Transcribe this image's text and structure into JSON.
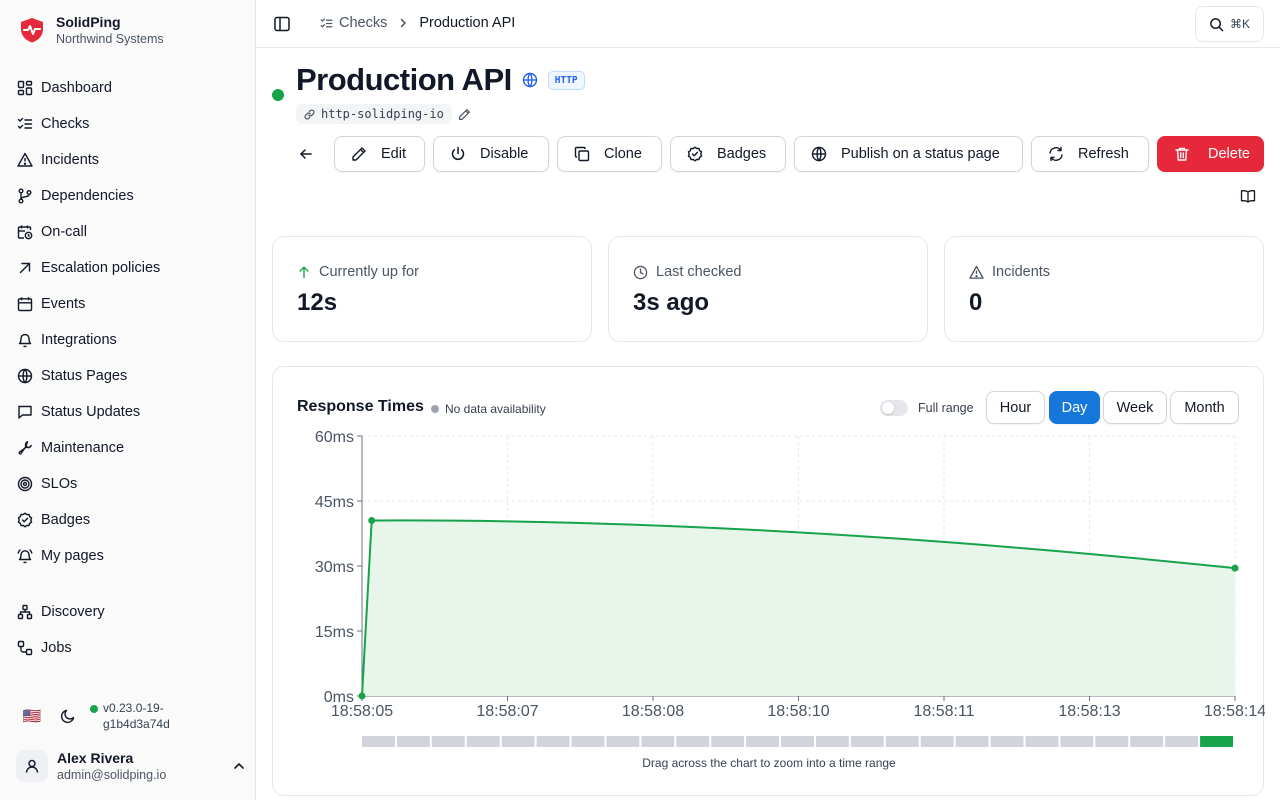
{
  "brand": {
    "name": "SolidPing",
    "org": "Northwind Systems"
  },
  "sidebar": {
    "items": [
      {
        "label": "Dashboard",
        "icon": "dashboard-icon"
      },
      {
        "label": "Checks",
        "icon": "checks-icon"
      },
      {
        "label": "Incidents",
        "icon": "warning-icon"
      },
      {
        "label": "Dependencies",
        "icon": "git-branch-icon"
      },
      {
        "label": "On-call",
        "icon": "calendar-clock-icon"
      },
      {
        "label": "Escalation policies",
        "icon": "arrow-up-right-icon"
      },
      {
        "label": "Events",
        "icon": "calendar-icon"
      },
      {
        "label": "Integrations",
        "icon": "bell-icon"
      },
      {
        "label": "Status Pages",
        "icon": "globe-icon"
      },
      {
        "label": "Status Updates",
        "icon": "message-icon"
      },
      {
        "label": "Maintenance",
        "icon": "wrench-icon"
      },
      {
        "label": "SLOs",
        "icon": "target-icon"
      },
      {
        "label": "Badges",
        "icon": "badge-check-icon"
      },
      {
        "label": "My pages",
        "icon": "bell-ring-icon"
      }
    ],
    "secondary_items": [
      {
        "label": "Discovery",
        "icon": "network-icon"
      },
      {
        "label": "Jobs",
        "icon": "workflow-icon"
      }
    ],
    "locale_flag": "🇺🇸",
    "version": "v0.23.0-19-g1b4d3a74d",
    "version_lines": [
      "v0.23.0-19-",
      "g1b4d3a74d"
    ],
    "user": {
      "name": "Alex Rivera",
      "email": "admin@solidping.io"
    }
  },
  "topbar": {
    "breadcrumb_parent": "Checks",
    "breadcrumb_current": "Production API",
    "search_shortcut": "⌘K"
  },
  "check": {
    "title": "Production API",
    "type_badge": "HTTP",
    "slug": "http-solidping-io",
    "status": "up",
    "status_color": "#16a34a"
  },
  "actions": {
    "edit": "Edit",
    "disable": "Disable",
    "clone": "Clone",
    "badges": "Badges",
    "publish": "Publish on a status page",
    "refresh": "Refresh",
    "delete": "Delete"
  },
  "stats": {
    "uptime": {
      "label": "Currently up for",
      "value": "12s"
    },
    "last_checked": {
      "label": "Last checked",
      "value": "3s ago"
    },
    "incidents": {
      "label": "Incidents",
      "value": "0"
    }
  },
  "chart_section": {
    "title": "Response Times",
    "availability_legend": "No data availability",
    "full_range_label": "Full range",
    "full_range_on": false,
    "ranges": [
      "Hour",
      "Day",
      "Week",
      "Month"
    ],
    "active_range": "Day",
    "drag_hint": "Drag across the chart to zoom into a time range"
  },
  "chart_data": {
    "type": "area",
    "title": "Response Times",
    "xlabel": "",
    "ylabel": "",
    "x_ticks": [
      "18:58:05",
      "18:58:07",
      "18:58:08",
      "18:58:10",
      "18:58:11",
      "18:58:13",
      "18:58:14"
    ],
    "y_ticks": [
      "0ms",
      "15ms",
      "30ms",
      "45ms",
      "60ms"
    ],
    "ylim": [
      0,
      60
    ],
    "x_range": [
      "18:58:05",
      "18:58:14"
    ],
    "series": [
      {
        "points": [
          {
            "x": "18:58:05.0",
            "y": 0
          },
          {
            "x": "18:58:05.1",
            "y": 40.5
          },
          {
            "x": "18:58:14.0",
            "y": 29.5
          }
        ]
      }
    ],
    "curve": "monotone",
    "grid": true,
    "line_color": "#16a34a",
    "fill_color": "#e8f5ea",
    "availability_bar": {
      "segments": 25,
      "up_segments": [
        24
      ],
      "up_color": "#16a34a",
      "nodata_color": "#d1d5db"
    }
  }
}
